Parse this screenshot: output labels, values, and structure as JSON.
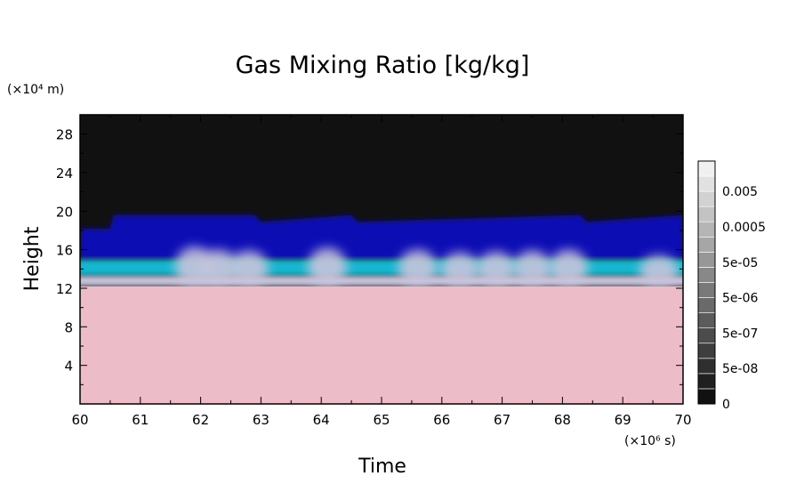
{
  "chart_data": {
    "type": "heatmap",
    "title": "Gas Mixing Ratio [kg/kg]",
    "xlabel": "Time",
    "ylabel": "Height",
    "x_unit": "(×10⁶ s)",
    "y_unit": "(×10⁴ m)",
    "xlim": [
      60,
      70
    ],
    "ylim": [
      0,
      30
    ],
    "x_ticks": [
      "60",
      "61",
      "62",
      "63",
      "64",
      "65",
      "66",
      "67",
      "68",
      "69",
      "70"
    ],
    "y_ticks": [
      "4",
      "8",
      "12",
      "16",
      "20",
      "24",
      "28"
    ],
    "colorbar": {
      "tick_labels": [
        "0",
        "5e-08",
        "5e-07",
        "5e-06",
        "5e-05",
        "0.0005",
        "0.005"
      ],
      "levels": 16
    },
    "bands": [
      {
        "label": "near-zero",
        "y_from": 0,
        "y_to": 12.2,
        "color": "#ecbcc8"
      },
      {
        "label": "transition",
        "y_from": 12.2,
        "y_to": 13.3,
        "color": "#c8c4dc"
      },
      {
        "label": "cyan-layer",
        "y_from": 13.3,
        "y_to": 15.0,
        "color": "#17b6cf"
      },
      {
        "label": "blue-layer",
        "y_from": 15.0,
        "y_to": 19.5,
        "color": "#1010b4"
      },
      {
        "label": "background",
        "y_from": 19.5,
        "y_to": 30,
        "color": "#111111"
      }
    ],
    "blue_top_profile": {
      "x": [
        60,
        60.5,
        60.55,
        62.9,
        63.0,
        64.5,
        64.6,
        68.3,
        68.4,
        70
      ],
      "y": [
        18.2,
        18.2,
        19.6,
        19.6,
        18.9,
        19.6,
        18.9,
        19.6,
        18.9,
        19.6
      ]
    },
    "plumes": [
      {
        "x": 61.9,
        "y_top": 16.3
      },
      {
        "x": 62.3,
        "y_top": 16.0
      },
      {
        "x": 62.8,
        "y_top": 15.9
      },
      {
        "x": 64.1,
        "y_top": 16.2
      },
      {
        "x": 65.6,
        "y_top": 16.0
      },
      {
        "x": 66.3,
        "y_top": 15.7
      },
      {
        "x": 66.9,
        "y_top": 15.8
      },
      {
        "x": 67.5,
        "y_top": 15.9
      },
      {
        "x": 68.1,
        "y_top": 16.0
      },
      {
        "x": 69.6,
        "y_top": 15.4
      }
    ]
  },
  "colors": {
    "background": "#111111",
    "blue": "#1010b4",
    "cyan": "#17b6cf",
    "pink": "#ecbcc8",
    "plume": "#c8c4dc"
  }
}
